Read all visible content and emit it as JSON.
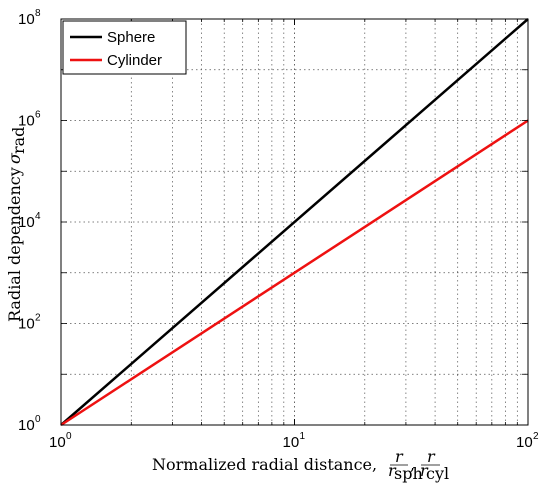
{
  "chart_data": {
    "type": "line",
    "xscale": "log",
    "yscale": "log",
    "xlim": [
      1,
      100
    ],
    "ylim": [
      1,
      100000000
    ],
    "grid": true,
    "legend_position": "top-left",
    "x_ticks": [
      {
        "base": "10",
        "exp": "0",
        "value": 1
      },
      {
        "base": "10",
        "exp": "1",
        "value": 10
      },
      {
        "base": "10",
        "exp": "2",
        "value": 100
      }
    ],
    "y_ticks": [
      {
        "base": "10",
        "exp": "0",
        "value": 1
      },
      {
        "base": "10",
        "exp": "2",
        "value": 100
      },
      {
        "base": "10",
        "exp": "4",
        "value": 10000
      },
      {
        "base": "10",
        "exp": "6",
        "value": 1000000
      },
      {
        "base": "10",
        "exp": "8",
        "value": 100000000
      }
    ],
    "xlabel": {
      "text": "Normalized radial distance, ",
      "frac1_num": "r",
      "frac1_den": "r",
      "frac1_den_sub": "sph",
      "sep": ",",
      "frac2_num": "r",
      "frac2_den": "r",
      "frac2_den_sub": "cyl"
    },
    "ylabel": {
      "text": "Radial dependency ",
      "symbol": "σ",
      "sub": "rad"
    },
    "series": [
      {
        "name": "Sphere",
        "color": "#000000",
        "x": [
          1,
          100
        ],
        "y": [
          1,
          100000000
        ]
      },
      {
        "name": "Cylinder",
        "color": "#ee1111",
        "x": [
          1,
          100
        ],
        "y": [
          1,
          1000000
        ]
      }
    ]
  }
}
